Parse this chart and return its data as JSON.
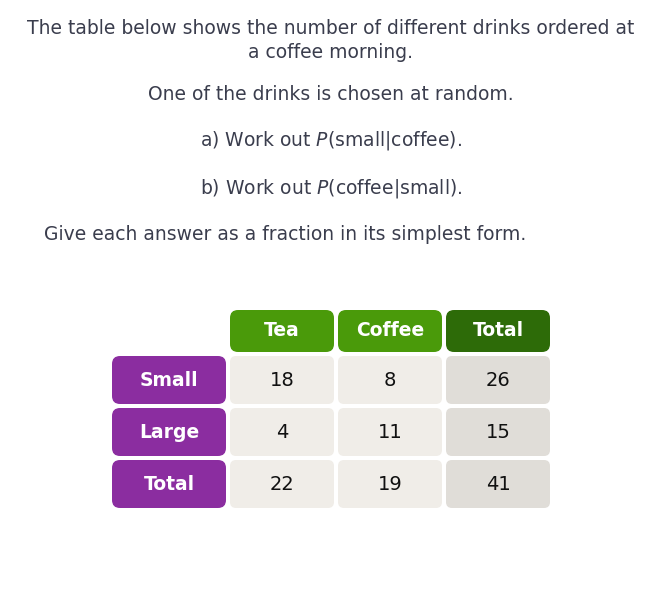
{
  "title_line1": "The table below shows the number of different drinks ordered at",
  "title_line2": "a coffee morning.",
  "line2": "One of the drinks is chosen at random.",
  "line5": "Give each answer as a fraction in its simplest form.",
  "col_headers": [
    "Tea",
    "Coffee",
    "Total"
  ],
  "row_headers": [
    "Small",
    "Large",
    "Total"
  ],
  "data": [
    [
      18,
      8,
      26
    ],
    [
      4,
      11,
      15
    ],
    [
      22,
      19,
      41
    ]
  ],
  "header_bg_colors": [
    "#4a9a0a",
    "#4a9a0a",
    "#2d6b08"
  ],
  "row_header_bg_color": "#8b2da0",
  "data_bg_colors": [
    "#f0ede8",
    "#f0ede8",
    "#e0ddd8"
  ],
  "header_text_color": "#ffffff",
  "row_header_text_color": "#ffffff",
  "data_text_color": "#111111",
  "bg_color": "#ffffff",
  "text_color": "#3a3d4d"
}
